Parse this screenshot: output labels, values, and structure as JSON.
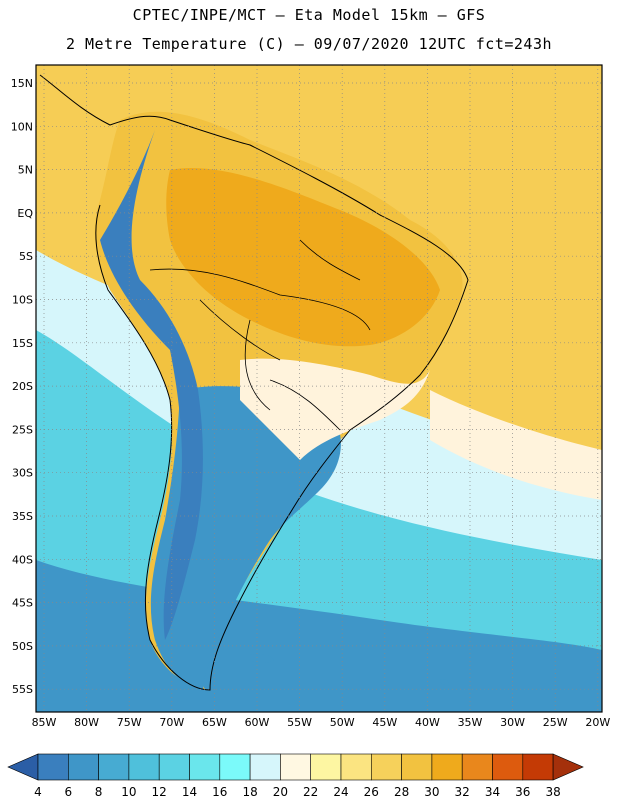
{
  "title_line1": "CPTEC/INPE/MCT –  Eta Model 15km – GFS",
  "title_line2": "2 Metre Temperature (C) – 09/07/2020 12UTC fct=243h",
  "lat_ticks": [
    "15N",
    "10N",
    "5N",
    "EQ",
    "5S",
    "10S",
    "15S",
    "20S",
    "25S",
    "30S",
    "35S",
    "40S",
    "45S",
    "50S",
    "55S"
  ],
  "lon_ticks": [
    "85W",
    "80W",
    "75W",
    "70W",
    "65W",
    "60W",
    "55W",
    "50W",
    "45W",
    "40W",
    "35W",
    "30W",
    "25W",
    "20W"
  ],
  "colorbar": {
    "labels": [
      "4",
      "6",
      "8",
      "10",
      "12",
      "14",
      "16",
      "18",
      "20",
      "22",
      "24",
      "26",
      "28",
      "30",
      "32",
      "34",
      "36",
      "38"
    ],
    "colors": [
      "#2b5ea6",
      "#3a7fbe",
      "#3f96c8",
      "#47abd2",
      "#4fc0db",
      "#5bd2e3",
      "#6ae6ec",
      "#7bfafa",
      "#d6f6fb",
      "#fff8e2",
      "#fdf6a2",
      "#fbe481",
      "#f6d15b",
      "#f2c240",
      "#efaa1c",
      "#e9871c",
      "#dd5b0e",
      "#c43a05",
      "#a4300b"
    ]
  },
  "map_colors": {
    "ocean_warm": "#f6cd55",
    "land_hot": "#efaa1c",
    "land_warm": "#f2c240",
    "cool_band": "#d6f6fb",
    "mild": "#fff3dc",
    "ocean_cool": "#5bd2e3",
    "ocean_mid": "#3f96c8",
    "ocean_cold": "#2b5ea6",
    "andes": "#3a7fbe"
  }
}
